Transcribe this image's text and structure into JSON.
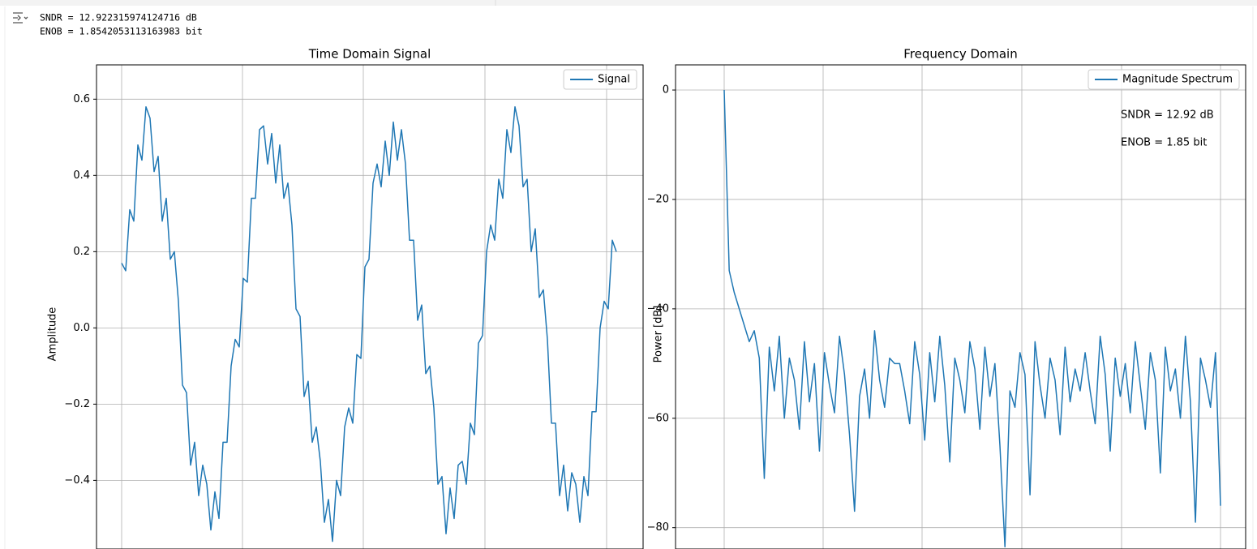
{
  "output": {
    "lines": [
      "SNDR = 12.922315974124716 dB",
      "ENOB = 1.8542053113163983 bit"
    ]
  },
  "chart_data": [
    {
      "type": "line",
      "title": "Time Domain Signal",
      "y_label": "Amplitude",
      "ylim": [
        -0.58,
        0.69
      ],
      "yticks": [
        {
          "value": -0.4,
          "label": "−0.4"
        },
        {
          "value": -0.2,
          "label": "−0.2"
        },
        {
          "value": 0,
          "label": "0.0"
        },
        0.2,
        0.4,
        0.6
      ],
      "grid": true,
      "legend": "upper right",
      "series": [
        {
          "name": "Signal",
          "color": "#1f77b4",
          "values": [
            0.17,
            0.15,
            0.31,
            0.28,
            0.48,
            0.44,
            0.58,
            0.55,
            0.41,
            0.45,
            0.28,
            0.34,
            0.18,
            0.2,
            0.07,
            -0.15,
            -0.17,
            -0.36,
            -0.3,
            -0.44,
            -0.36,
            -0.41,
            -0.53,
            -0.43,
            -0.5,
            -0.3,
            -0.3,
            -0.1,
            -0.03,
            -0.05,
            0.13,
            0.12,
            0.34,
            0.34,
            0.52,
            0.53,
            0.43,
            0.51,
            0.38,
            0.48,
            0.34,
            0.38,
            0.27,
            0.05,
            0.03,
            -0.18,
            -0.14,
            -0.3,
            -0.26,
            -0.35,
            -0.51,
            -0.45,
            -0.56,
            -0.4,
            -0.44,
            -0.26,
            -0.21,
            -0.25,
            -0.07,
            -0.08,
            0.16,
            0.18,
            0.38,
            0.43,
            0.37,
            0.49,
            0.4,
            0.54,
            0.44,
            0.52,
            0.43,
            0.23,
            0.23,
            0.02,
            0.06,
            -0.12,
            -0.1,
            -0.21,
            -0.41,
            -0.39,
            -0.54,
            -0.42,
            -0.5,
            -0.36,
            -0.35,
            -0.41,
            -0.25,
            -0.28,
            -0.04,
            -0.02,
            0.2,
            0.27,
            0.23,
            0.39,
            0.34,
            0.52,
            0.46,
            0.58,
            0.53,
            0.37,
            0.39,
            0.2,
            0.26,
            0.08,
            0.1,
            -0.03,
            -0.25,
            -0.25,
            -0.44,
            -0.36,
            -0.48,
            -0.38,
            -0.41,
            -0.51,
            -0.39,
            -0.44,
            -0.22,
            -0.22,
            0.0,
            0.07,
            0.05,
            0.23,
            0.2
          ]
        }
      ]
    },
    {
      "type": "line",
      "title": "Frequency Domain",
      "y_label": "Power [dB]",
      "ylim": [
        -83.9,
        4.6
      ],
      "yticks": [
        {
          "value": -80,
          "label": "−80"
        },
        {
          "value": -60,
          "label": "−60"
        },
        {
          "value": -40,
          "label": "−40"
        },
        {
          "value": -20,
          "label": "−20"
        },
        0
      ],
      "grid": true,
      "legend": "upper right",
      "annotations": [
        "SNDR = 12.92 dB",
        "ENOB = 1.85 bit"
      ],
      "series": [
        {
          "name": "Magnitude Spectrum",
          "color": "#1f77b4",
          "values": [
            0,
            -33,
            -37,
            -40,
            -43,
            -46,
            -44,
            -49,
            -71,
            -47,
            -55,
            -45,
            -60,
            -49,
            -53,
            -62,
            -46,
            -57,
            -50,
            -66,
            -48,
            -54,
            -59,
            -45,
            -52,
            -63,
            -77,
            -56,
            -51,
            -60,
            -44,
            -53,
            -58,
            -49,
            -50,
            -50,
            -55,
            -61,
            -46,
            -52,
            -64,
            -48,
            -57,
            -45,
            -54,
            -68,
            -49,
            -53,
            -59,
            -46,
            -51,
            -62,
            -47,
            -56,
            -50,
            -65,
            -83.5,
            -55,
            -58,
            -48,
            -52,
            -74,
            -46,
            -54,
            -60,
            -49,
            -53,
            -63,
            -47,
            -57,
            -51,
            -55,
            -48,
            -55,
            -61,
            -45,
            -52,
            -66,
            -49,
            -56,
            -50,
            -59,
            -46,
            -54,
            -62,
            -48,
            -53,
            -70,
            -47,
            -55,
            -51,
            -60,
            -45,
            -57,
            -79,
            -49,
            -53,
            -58,
            -48,
            -76
          ]
        }
      ]
    }
  ]
}
